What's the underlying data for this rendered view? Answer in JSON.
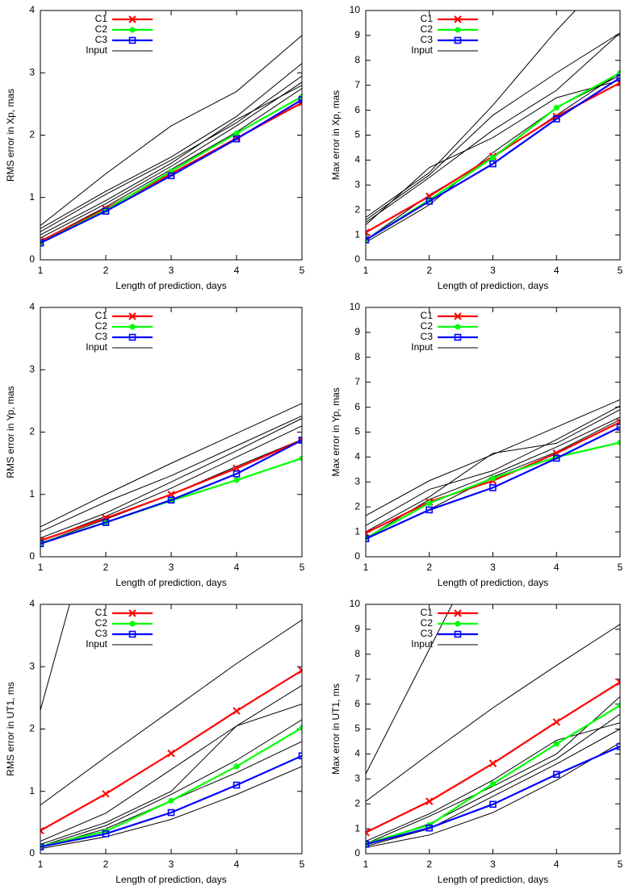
{
  "chart_data": [
    {
      "type": "line",
      "ylabel": "RMS error in Xp, mas",
      "xlabel": "Length of prediction, days",
      "x": [
        1,
        2,
        3,
        4,
        5
      ],
      "xlim": [
        1,
        5
      ],
      "xticks": [
        1,
        2,
        3,
        4,
        5
      ],
      "ylim": [
        0,
        4
      ],
      "yticks": [
        0,
        1,
        2,
        3,
        4
      ],
      "legend": "top-left",
      "series": [
        {
          "name": "C1",
          "color": "#ff0000",
          "marker": "x",
          "values": [
            0.3,
            0.82,
            1.38,
            1.95,
            2.52
          ]
        },
        {
          "name": "C2",
          "color": "#00ff00",
          "marker": "circle",
          "values": [
            0.27,
            0.8,
            1.42,
            2.03,
            2.62
          ]
        },
        {
          "name": "C3",
          "color": "#0000ff",
          "marker": "square",
          "values": [
            0.27,
            0.78,
            1.35,
            1.94,
            2.57
          ]
        },
        {
          "name": "Input",
          "color": "#000000",
          "values": [
            [
              0.55,
              1.38,
              2.15,
              2.7,
              3.6
            ],
            [
              0.5,
              1.1,
              1.65,
              2.3,
              3.15
            ],
            [
              0.45,
              1.05,
              1.6,
              2.2,
              2.95
            ],
            [
              0.35,
              0.9,
              1.5,
              2.15,
              2.85
            ],
            [
              0.4,
              0.95,
              1.55,
              2.25,
              2.8
            ],
            [
              0.3,
              0.85,
              1.45,
              2.05,
              2.75
            ]
          ]
        }
      ]
    },
    {
      "type": "line",
      "ylabel": "Max error in Xp, mas",
      "xlabel": "Length of prediction, days",
      "x": [
        1,
        2,
        3,
        4,
        5
      ],
      "xlim": [
        1,
        5
      ],
      "xticks": [
        1,
        2,
        3,
        4,
        5
      ],
      "ylim": [
        0,
        10
      ],
      "yticks": [
        0,
        1,
        2,
        3,
        4,
        5,
        6,
        7,
        8,
        9,
        10
      ],
      "legend": "top-left",
      "series": [
        {
          "name": "C1",
          "color": "#ff0000",
          "marker": "x",
          "values": [
            1.1,
            2.55,
            4.15,
            5.75,
            7.1
          ]
        },
        {
          "name": "C2",
          "color": "#00ff00",
          "marker": "circle",
          "values": [
            0.8,
            2.4,
            4.1,
            6.1,
            7.5
          ]
        },
        {
          "name": "C3",
          "color": "#0000ff",
          "marker": "square",
          "values": [
            0.8,
            2.35,
            3.85,
            5.65,
            7.3
          ]
        },
        {
          "name": "Input",
          "color": "#000000",
          "values": [
            [
              1.7,
              3.5,
              6.2,
              9.2,
              11.9
            ],
            [
              1.6,
              3.4,
              5.8,
              7.5,
              9.1
            ],
            [
              1.5,
              3.3,
              5.2,
              6.8,
              9.1
            ],
            [
              1.4,
              3.7,
              4.9,
              6.5,
              7.2
            ],
            [
              0.8,
              2.6,
              4.1,
              5.8,
              7.5
            ],
            [
              0.7,
              2.2,
              4.3,
              6.1,
              7.4
            ]
          ]
        }
      ]
    },
    {
      "type": "line",
      "ylabel": "RMS error in Yp, mas",
      "xlabel": "Length of prediction, days",
      "x": [
        1,
        2,
        3,
        4,
        5
      ],
      "xlim": [
        1,
        5
      ],
      "xticks": [
        1,
        2,
        3,
        4,
        5
      ],
      "ylim": [
        0,
        4
      ],
      "yticks": [
        0,
        1,
        2,
        3,
        4
      ],
      "legend": "top-left",
      "series": [
        {
          "name": "C1",
          "color": "#ff0000",
          "marker": "x",
          "values": [
            0.26,
            0.62,
            1.0,
            1.42,
            1.87
          ]
        },
        {
          "name": "C2",
          "color": "#00ff00",
          "marker": "circle",
          "values": [
            0.22,
            0.55,
            0.9,
            1.23,
            1.58
          ]
        },
        {
          "name": "C3",
          "color": "#0000ff",
          "marker": "square",
          "values": [
            0.21,
            0.55,
            0.91,
            1.33,
            1.87
          ]
        },
        {
          "name": "Input",
          "color": "#000000",
          "values": [
            [
              0.48,
              1.0,
              1.5,
              1.98,
              2.46
            ],
            [
              0.4,
              0.88,
              1.3,
              1.78,
              2.26
            ],
            [
              0.3,
              0.7,
              1.2,
              1.7,
              2.22
            ],
            [
              0.25,
              0.65,
              1.1,
              1.6,
              2.1
            ],
            [
              0.22,
              0.6,
              1.0,
              1.45,
              1.88
            ]
          ]
        }
      ]
    },
    {
      "type": "line",
      "ylabel": "Max error in Yp, mas",
      "xlabel": "Length of prediction, days",
      "x": [
        1,
        2,
        3,
        4,
        5
      ],
      "xlim": [
        1,
        5
      ],
      "xticks": [
        1,
        2,
        3,
        4,
        5
      ],
      "ylim": [
        0,
        10
      ],
      "yticks": [
        0,
        1,
        2,
        3,
        4,
        5,
        6,
        7,
        8,
        9,
        10
      ],
      "legend": "top-left",
      "series": [
        {
          "name": "C1",
          "color": "#ff0000",
          "marker": "x",
          "values": [
            0.95,
            2.2,
            3.05,
            4.15,
            5.4
          ]
        },
        {
          "name": "C2",
          "color": "#00ff00",
          "marker": "circle",
          "values": [
            0.75,
            2.15,
            3.15,
            4.0,
            4.58
          ]
        },
        {
          "name": "C3",
          "color": "#0000ff",
          "marker": "square",
          "values": [
            0.72,
            1.88,
            2.77,
            3.95,
            5.2
          ]
        },
        {
          "name": "Input",
          "color": "#000000",
          "values": [
            [
              1.65,
              3.05,
              4.1,
              5.2,
              6.3
            ],
            [
              1.25,
              2.7,
              3.45,
              4.7,
              6.05
            ],
            [
              1.0,
              2.4,
              4.15,
              4.55,
              5.9
            ],
            [
              0.75,
              2.3,
              3.3,
              4.4,
              5.6
            ],
            [
              0.7,
              1.9,
              3.2,
              4.2,
              5.5
            ]
          ]
        }
      ]
    },
    {
      "type": "line",
      "ylabel": "RMS error in UT1, ms",
      "xlabel": "Length of prediction, days",
      "x": [
        1,
        2,
        3,
        4,
        5
      ],
      "xlim": [
        1,
        5
      ],
      "xticks": [
        1,
        2,
        3,
        4,
        5
      ],
      "ylim": [
        0,
        4
      ],
      "yticks": [
        0,
        1,
        2,
        3,
        4
      ],
      "legend": "top-left",
      "series": [
        {
          "name": "C1",
          "color": "#ff0000",
          "marker": "x",
          "values": [
            0.37,
            0.96,
            1.61,
            2.29,
            2.94
          ]
        },
        {
          "name": "C2",
          "color": "#00ff00",
          "marker": "circle",
          "values": [
            0.12,
            0.36,
            0.85,
            1.4,
            2.02
          ]
        },
        {
          "name": "C3",
          "color": "#0000ff",
          "marker": "square",
          "values": [
            0.11,
            0.32,
            0.66,
            1.1,
            1.57
          ]
        },
        {
          "name": "Input",
          "color": "#000000",
          "values": [
            [
              2.3,
              6.1,
              null,
              null,
              null
            ],
            [
              0.78,
              1.55,
              2.3,
              3.05,
              3.75
            ],
            [
              0.2,
              0.65,
              1.35,
              2.05,
              2.7
            ],
            [
              0.15,
              0.5,
              1.0,
              2.05,
              2.4
            ],
            [
              0.12,
              0.45,
              0.95,
              1.5,
              2.15
            ],
            [
              0.1,
              0.4,
              0.85,
              1.3,
              1.8
            ],
            [
              0.08,
              0.27,
              0.55,
              0.95,
              1.4
            ]
          ]
        }
      ]
    },
    {
      "type": "line",
      "ylabel": "Max error in UT1, ms",
      "xlabel": "Length of prediction, days",
      "x": [
        1,
        2,
        3,
        4,
        5
      ],
      "xlim": [
        1,
        5
      ],
      "xticks": [
        1,
        2,
        3,
        4,
        5
      ],
      "ylim": [
        0,
        10
      ],
      "yticks": [
        0,
        1,
        2,
        3,
        4,
        5,
        6,
        7,
        8,
        9,
        10
      ],
      "legend": "top-left",
      "series": [
        {
          "name": "C1",
          "color": "#ff0000",
          "marker": "x",
          "values": [
            0.85,
            2.1,
            3.62,
            5.28,
            6.88
          ]
        },
        {
          "name": "C2",
          "color": "#00ff00",
          "marker": "circle",
          "values": [
            0.4,
            1.15,
            2.8,
            4.4,
            5.95
          ]
        },
        {
          "name": "C3",
          "color": "#0000ff",
          "marker": "square",
          "values": [
            0.38,
            1.03,
            1.98,
            3.18,
            4.3
          ]
        },
        {
          "name": "Input",
          "color": "#000000",
          "values": [
            [
              3.2,
              8.2,
              13.2,
              null,
              null
            ],
            [
              2.1,
              4.0,
              5.85,
              7.55,
              9.2
            ],
            [
              0.5,
              1.6,
              2.95,
              4.55,
              5.25
            ],
            [
              0.4,
              1.5,
              2.7,
              4.0,
              6.3
            ],
            [
              0.35,
              1.2,
              2.5,
              3.8,
              5.6
            ],
            [
              0.3,
              1.0,
              2.3,
              3.6,
              5.0
            ],
            [
              0.25,
              0.75,
              1.65,
              2.95,
              4.45
            ]
          ]
        }
      ]
    }
  ]
}
